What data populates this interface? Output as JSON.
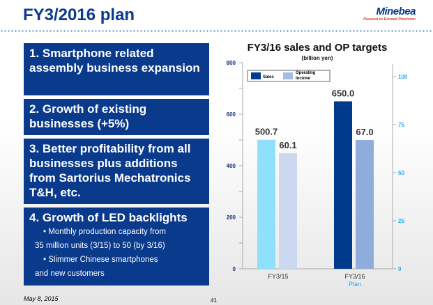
{
  "header": {
    "title": "FY3/2016 plan",
    "logo_name": "Minebea",
    "logo_tagline": "Passion to Exceed Precision"
  },
  "points": [
    {
      "text": "1. Smartphone related assembly business expansion"
    },
    {
      "text": "2. Growth of existing businesses (+5%)"
    },
    {
      "text": "3. Better profitability from all businesses plus additions from  Sartorius Mechatronics T&H, etc."
    },
    {
      "text": "4. Growth of LED backlights",
      "bullets": [
        "Monthly production capacity from",
        "35 million units (3/15) to 50 (by 3/16)",
        "Slimmer Chinese smartphones",
        "and new customers"
      ]
    }
  ],
  "footer": {
    "date": "May 8, 2015",
    "page": "41"
  },
  "chart_data": {
    "type": "bar",
    "title": "FY3/16 sales and OP targets",
    "subtitle": "(billion yen)",
    "categories": [
      "FY3/15",
      "FY3/16"
    ],
    "category_sublabels": [
      "",
      "Plan"
    ],
    "series": [
      {
        "name": "Sales",
        "axis": "left",
        "values": [
          500.7,
          650.0
        ],
        "labels": [
          "500.7",
          "650.0"
        ],
        "colors": [
          "#8ee0fc",
          "#003a8c"
        ]
      },
      {
        "name": "Operating Income",
        "axis": "right",
        "values": [
          60.1,
          67.0
        ],
        "labels": [
          "60.1",
          "67.0"
        ],
        "colors": [
          "#cbd8ef",
          "#90acdc"
        ]
      }
    ],
    "legend": {
      "position": "top-left",
      "labels": [
        "Sales",
        "Operating",
        "Income"
      ],
      "colors": [
        "#003a8c",
        "#a4bce4"
      ]
    },
    "left_axis": {
      "ylim": [
        0,
        800
      ],
      "ticks": [
        "0",
        "200",
        "400",
        "600",
        "800"
      ],
      "color": "#1a2f80"
    },
    "right_axis": {
      "ylim": [
        0,
        100
      ],
      "ticks": [
        "0",
        "25",
        "50",
        "75",
        "100"
      ],
      "color": "#29a8e8"
    }
  }
}
